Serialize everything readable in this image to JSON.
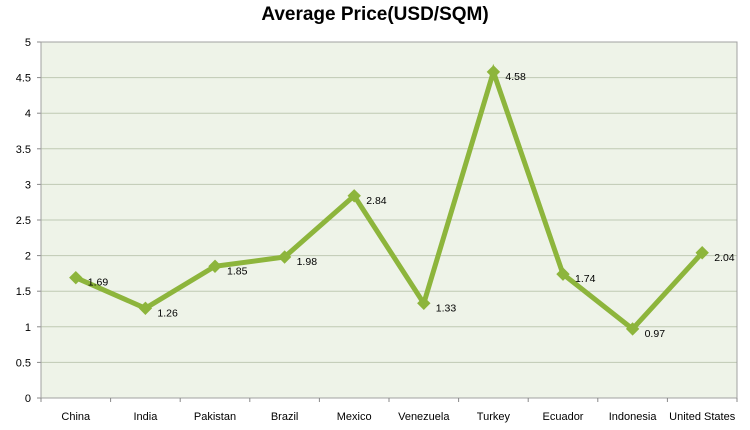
{
  "chart_data": {
    "type": "line",
    "title": "Average Price(USD/SQM)",
    "xlabel": "",
    "ylabel": "",
    "categories": [
      "China",
      "India",
      "Pakistan",
      "Brazil",
      "Mexico",
      "Venezuela",
      "Turkey",
      "Ecuador",
      "Indonesia",
      "United States"
    ],
    "series": [
      {
        "values": [
          1.69,
          1.26,
          1.85,
          1.98,
          2.84,
          1.33,
          4.58,
          1.74,
          0.97,
          2.04
        ],
        "color": "#8db53c",
        "marker": "diamond"
      }
    ],
    "data_labels": [
      "1.69",
      "1.26",
      "1.85",
      "1.98",
      "2.84",
      "1.33",
      "4.58",
      "1.74",
      "0.97",
      "2.04"
    ],
    "y_ticks": [
      "0",
      "0.5",
      "1",
      "1.5",
      "2",
      "2.5",
      "3",
      "3.5",
      "4",
      "4.5",
      "5"
    ],
    "ylim": [
      0,
      5
    ],
    "grid": true,
    "legend": "none",
    "plot_background": "#eef3e8",
    "grid_color": "#bfc9b3"
  }
}
